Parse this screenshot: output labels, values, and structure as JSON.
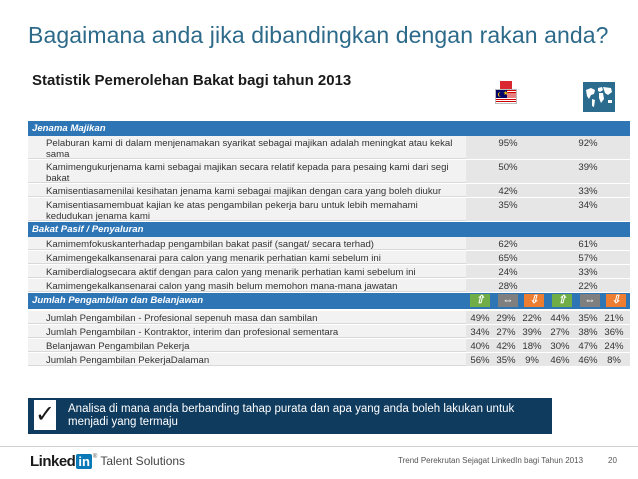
{
  "title": "Bagaimana anda jika dibandingkan dengan rakan anda?",
  "subtitle": "Statistik Pemerolehan Bakat bagi tahun 2013",
  "colors": {
    "header_blue": "#2e75b6",
    "up": "#70ad47",
    "equal": "#7f7f7f",
    "down": "#ed7d31",
    "note_bg": "#0f3b5f"
  },
  "icons": {
    "flag": "malaysia-flag-icon",
    "globe": "world-map-icon"
  },
  "sections": [
    {
      "header": "Jenama Majikan",
      "rows": [
        {
          "label": "Pelaburan kami di dalam menjenamakan syarikat sebagai majikan adalah meningkat atau kekal sama",
          "my": "95%",
          "global": "92%"
        },
        {
          "label": "Kamimengukurjenama kami sebagai majikan secara relatif kepada para pesaing kami dari segi bakat",
          "my": "50%",
          "global": "39%"
        },
        {
          "label": "Kamisentiasamenilai kesihatan jenama kami sebagai majikan dengan cara yang boleh diukur",
          "my": "42%",
          "global": "33%"
        },
        {
          "label": "Kamisentiasamembuat kajian ke atas pengambilan pekerja baru untuk lebih memahami kedudukan jenama kami",
          "my": "35%",
          "global": "34%"
        }
      ]
    },
    {
      "header": "Bakat Pasif / Penyaluran",
      "rows": [
        {
          "label": "Kamimemfokuskanterhadap pengambilan bakat pasif (sangat/ secara terhad)",
          "my": "62%",
          "global": "61%"
        },
        {
          "label": "Kamimengekalkansenarai para calon yang menarik perhatian kami sebelum ini",
          "my": "65%",
          "global": "57%"
        },
        {
          "label": "Kamiberdialogsecara aktif dengan para calon yang menarik perhatian kami sebelum ini",
          "my": "24%",
          "global": "33%"
        },
        {
          "label": "Kamimengekalkansenarai calon yang masih belum memohon mana-mana jawatan",
          "my": "28%",
          "global": "22%"
        }
      ]
    },
    {
      "header": "Jumlah Pengambilan dan Belanjawan",
      "arrows": [
        "up",
        "equal",
        "down",
        "up",
        "equal",
        "down"
      ],
      "rows": [
        {
          "label": "Jumlah Pengambilan - Profesional sepenuh masa dan sambilan",
          "vals": [
            "49%",
            "29%",
            "22%",
            "44%",
            "35%",
            "21%"
          ]
        },
        {
          "label": "Jumlah Pengambilan - Kontraktor, interim dan profesional sementara",
          "vals": [
            "34%",
            "27%",
            "39%",
            "27%",
            "38%",
            "36%"
          ]
        },
        {
          "label": "Belanjawan Pengambilan Pekerja",
          "vals": [
            "40%",
            "42%",
            "18%",
            "30%",
            "47%",
            "24%"
          ]
        },
        {
          "label": "Jumlah Pengambilan PekerjaDalaman",
          "vals": [
            "56%",
            "35%",
            "9%",
            "46%",
            "46%",
            "8%"
          ]
        }
      ]
    }
  ],
  "note": "Analisa di mana anda berbanding tahap purata dan apa yang anda boleh lakukan untuk menjadi yang termaju",
  "footer": {
    "logo_linked": "Linked",
    "logo_in": "in",
    "logo_tm": "®",
    "logo_suffix": "Talent Solutions",
    "caption": "Trend Perekrutan Sejagat LinkedIn bagi Tahun 2013",
    "page": "20"
  }
}
